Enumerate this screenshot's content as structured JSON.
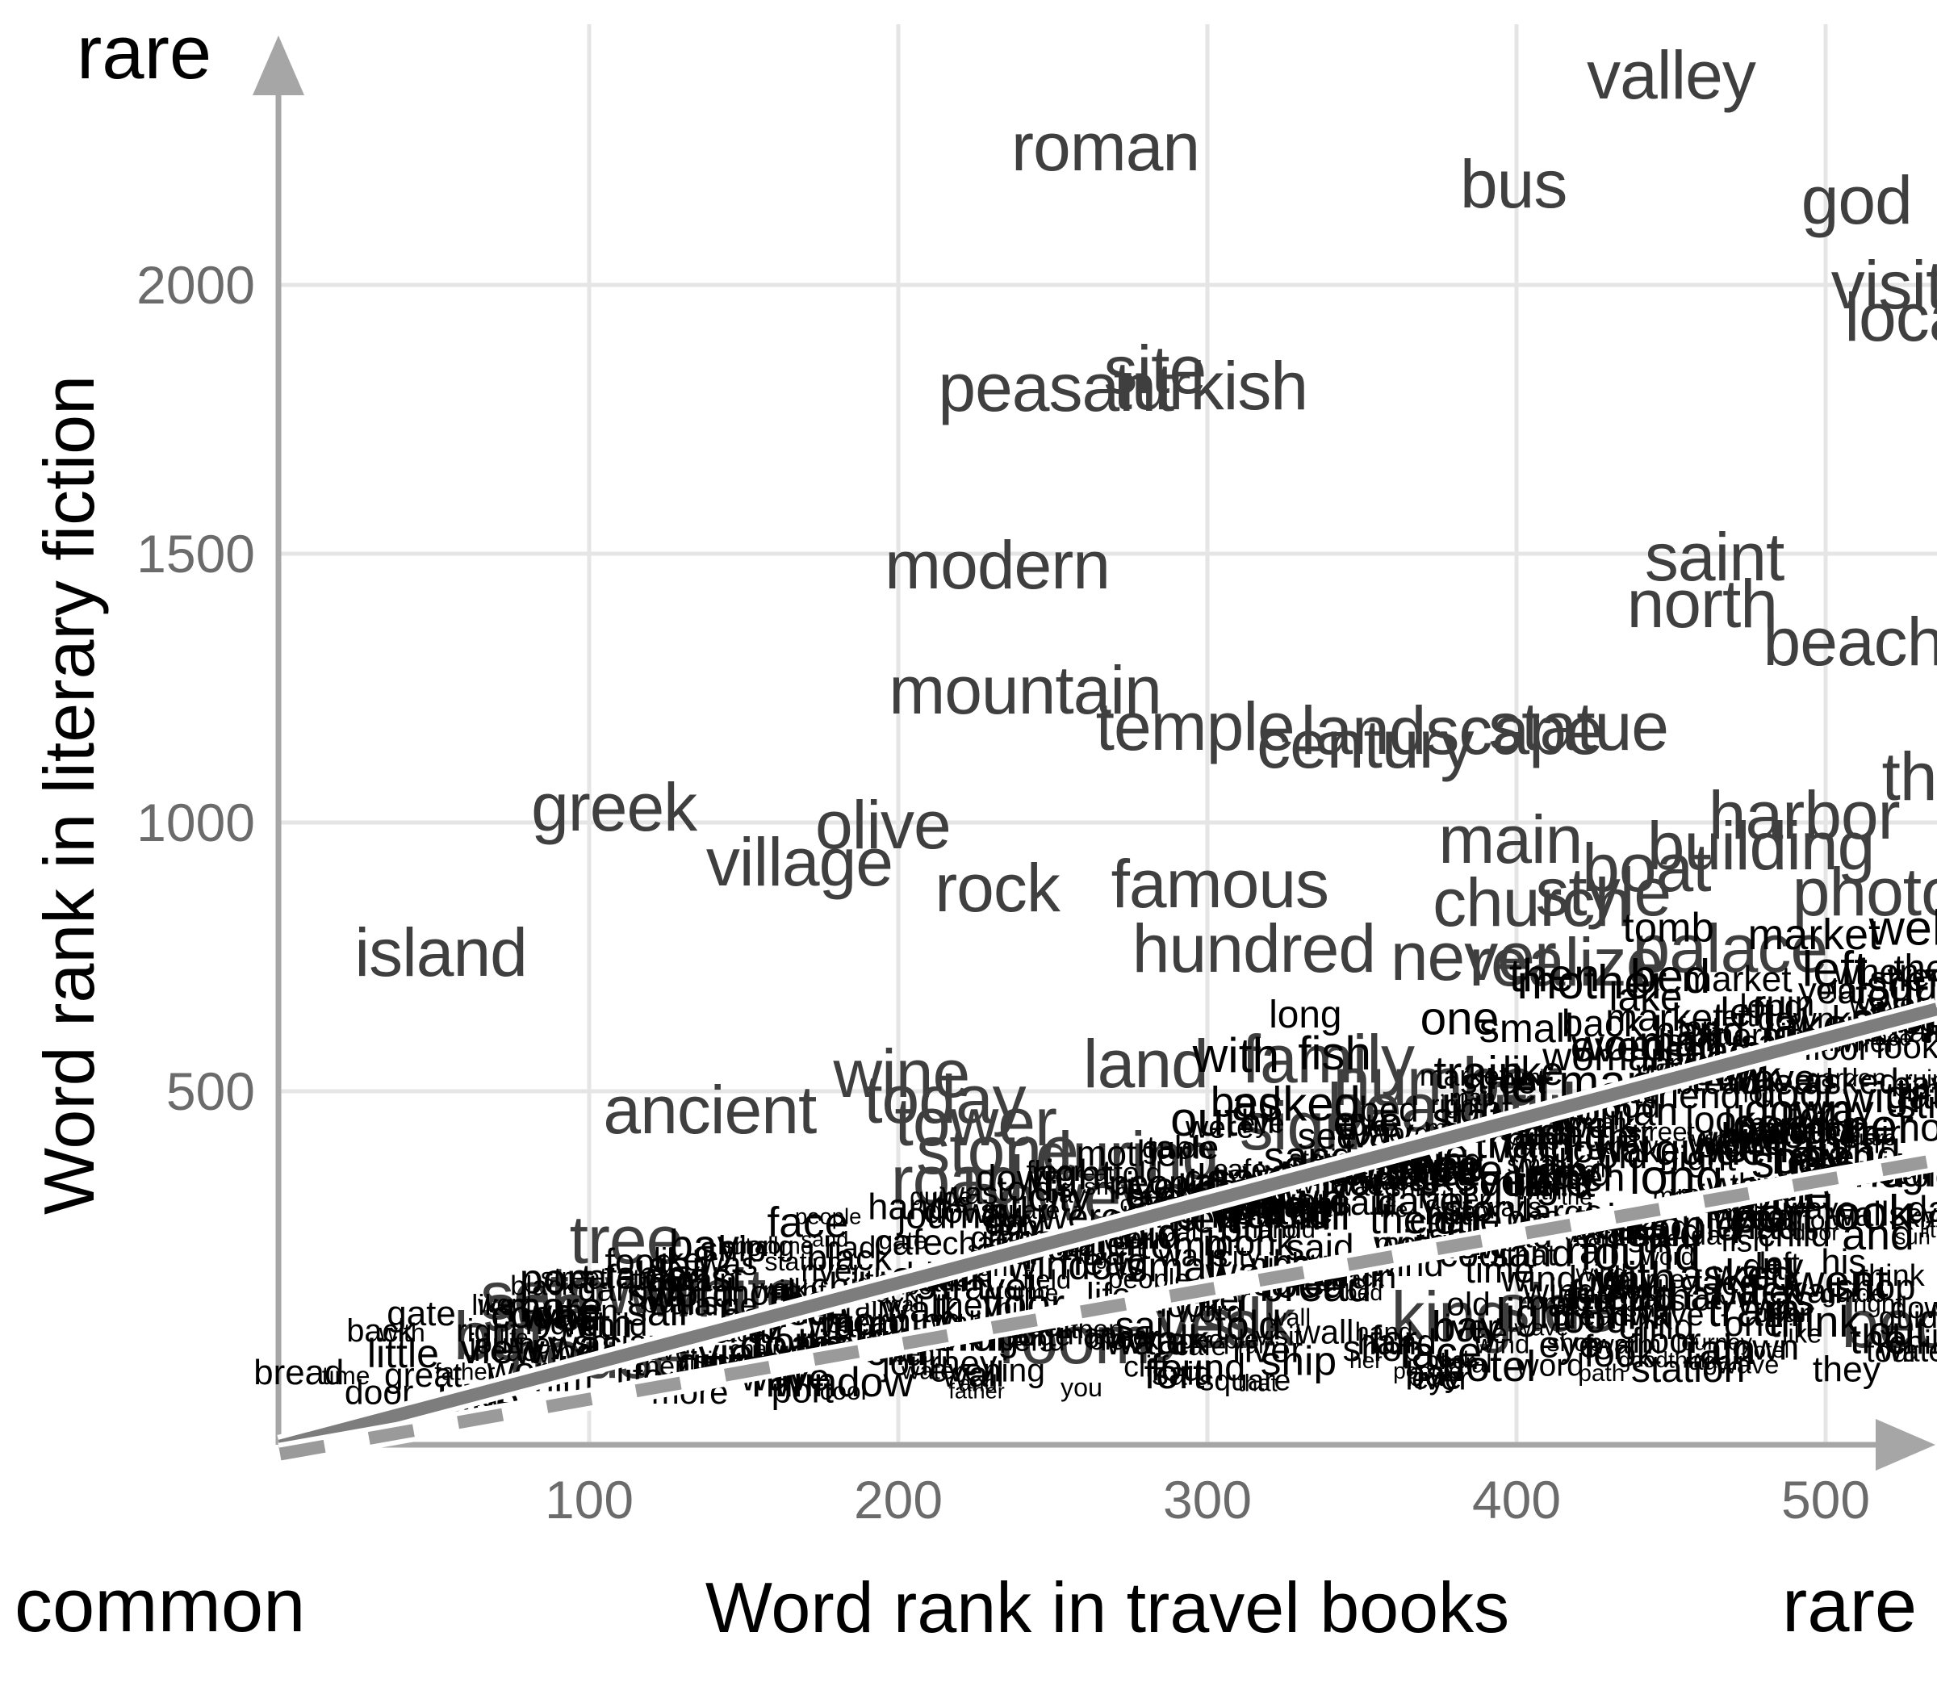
{
  "chart_data": {
    "type": "scatter",
    "title": "",
    "xlabel": "Word rank in travel books",
    "ylabel": "Word rank in literary fiction",
    "x_endpoint_labels": {
      "left": "common",
      "right": "rare"
    },
    "y_endpoint_labels": {
      "top": "rare"
    },
    "x_ticks": [
      100,
      200,
      300,
      400,
      500
    ],
    "y_ticks": [
      500,
      1000,
      1500,
      2000
    ],
    "x_range": [
      0,
      536
    ],
    "y_range": [
      0,
      2450
    ],
    "grid": true,
    "legend": "none",
    "colors": {
      "word_text": "#3f3f3f",
      "dense_text": "#000000",
      "gridline": "#e5e5e5",
      "axis": "#a6a6a6",
      "tick_text": "#6b6b6b",
      "trend_solid": "#7d7d7d",
      "trend_dashed": "#9a9a9a",
      "trend_casing": "#ffffff"
    },
    "points": [
      {
        "word": "roman",
        "travel_rank": 267,
        "fiction_rank": 2257
      },
      {
        "word": "valley",
        "travel_rank": 450,
        "fiction_rank": 2390
      },
      {
        "word": "bus",
        "travel_rank": 399,
        "fiction_rank": 2188
      },
      {
        "word": "god",
        "travel_rank": 510,
        "fiction_rank": 2158
      },
      {
        "word": "visit",
        "travel_rank": 520,
        "fiction_rank": 2000
      },
      {
        "word": "local",
        "travel_rank": 528,
        "fiction_rank": 1940
      },
      {
        "word": "peasant",
        "travel_rank": 251,
        "fiction_rank": 1809
      },
      {
        "word": "site",
        "travel_rank": 283,
        "fiction_rank": 1842
      },
      {
        "word": "turkish",
        "travel_rank": 301,
        "fiction_rank": 1812
      },
      {
        "word": "modern",
        "travel_rank": 232,
        "fiction_rank": 1479
      },
      {
        "word": "saint",
        "travel_rank": 464,
        "fiction_rank": 1494
      },
      {
        "word": "north",
        "travel_rank": 460,
        "fiction_rank": 1407
      },
      {
        "word": "beach",
        "travel_rank": 509,
        "fiction_rank": 1336
      },
      {
        "word": "mountain",
        "travel_rank": 241,
        "fiction_rank": 1246
      },
      {
        "word": "temple",
        "travel_rank": 296,
        "fiction_rank": 1179
      },
      {
        "word": "century",
        "travel_rank": 351,
        "fiction_rank": 1146
      },
      {
        "word": "landscape",
        "travel_rank": 379,
        "fiction_rank": 1171
      },
      {
        "word": "statue",
        "travel_rank": 420,
        "fiction_rank": 1179
      },
      {
        "word": "harbor",
        "travel_rank": 493,
        "fiction_rank": 1014
      },
      {
        "word": "the",
        "travel_rank": 533,
        "fiction_rank": 1086
      },
      {
        "word": "greek",
        "travel_rank": 108,
        "fiction_rank": 1029
      },
      {
        "word": "village",
        "travel_rank": 168,
        "fiction_rank": 926
      },
      {
        "word": "olive",
        "travel_rank": 195,
        "fiction_rank": 996
      },
      {
        "word": "rock",
        "travel_rank": 232,
        "fiction_rank": 878
      },
      {
        "word": "island",
        "travel_rank": 52,
        "fiction_rank": 758
      },
      {
        "word": "famous",
        "travel_rank": 304,
        "fiction_rank": 886
      },
      {
        "word": "main",
        "travel_rank": 398,
        "fiction_rank": 968
      },
      {
        "word": "building",
        "travel_rank": 479,
        "fiction_rank": 956
      },
      {
        "word": "style",
        "travel_rank": 428,
        "fiction_rank": 871
      },
      {
        "word": "church",
        "travel_rank": 405,
        "fiction_rank": 851
      },
      {
        "word": "photo",
        "travel_rank": 516,
        "fiction_rank": 871
      },
      {
        "word": "boat",
        "travel_rank": 442,
        "fiction_rank": 916
      },
      {
        "word": "hundred",
        "travel_rank": 315,
        "fiction_rank": 766
      },
      {
        "word": "never",
        "travel_rank": 386,
        "fiction_rank": 751
      },
      {
        "word": "realize",
        "travel_rank": 416,
        "fiction_rank": 740
      },
      {
        "word": "palace",
        "travel_rank": 469,
        "fiction_rank": 766
      },
      {
        "word": "wine",
        "travel_rank": 201,
        "fiction_rank": 533
      },
      {
        "word": "land",
        "travel_rank": 280,
        "fiction_rank": 551
      },
      {
        "word": "ancient",
        "travel_rank": 139,
        "fiction_rank": 466
      },
      {
        "word": "today",
        "travel_rank": 215,
        "fiction_rank": 485
      },
      {
        "word": "tower",
        "travel_rank": 225,
        "fiction_rank": 443
      },
      {
        "word": "stone",
        "travel_rank": 232,
        "fiction_rank": 390
      },
      {
        "word": "during",
        "travel_rank": 274,
        "fiction_rank": 380
      },
      {
        "word": "however",
        "travel_rank": 261,
        "fiction_rank": 303
      },
      {
        "word": "road",
        "travel_rank": 219,
        "fiction_rank": 335
      },
      {
        "word": "number",
        "travel_rank": 377,
        "fiction_rank": 518
      },
      {
        "word": "beautiful",
        "travel_rank": 379,
        "fiction_rank": 470
      },
      {
        "word": "family",
        "travel_rank": 339,
        "fiction_rank": 560
      },
      {
        "word": "sign",
        "travel_rank": 330,
        "fiction_rank": 435
      },
      {
        "word": "tree",
        "travel_rank": 112,
        "fiction_rank": 224
      },
      {
        "word": "sea",
        "travel_rank": 83,
        "fiction_rank": 98
      },
      {
        "word": "town",
        "travel_rank": 110,
        "fiction_rank": 131
      },
      {
        "word": "white",
        "travel_rank": 144,
        "fiction_rank": 125
      },
      {
        "word": "house",
        "travel_rank": 103,
        "fiction_rank": 10
      },
      {
        "word": "but",
        "travel_rank": 71,
        "fiction_rank": 45
      },
      {
        "word": "set",
        "travel_rank": 79,
        "fiction_rank": 120
      },
      {
        "word": "yes",
        "travel_rank": 300,
        "fiction_rank": 68
      },
      {
        "word": "silk",
        "travel_rank": 313,
        "fiction_rank": 71
      },
      {
        "word": "king",
        "travel_rank": 379,
        "fiction_rank": 83
      },
      {
        "word": "side",
        "travel_rank": 413,
        "fiction_rank": 98
      },
      {
        "word": "bed",
        "travel_rank": 523,
        "fiction_rank": 68
      },
      {
        "word": "room",
        "travel_rank": 257,
        "fiction_rank": 38
      }
    ],
    "trend_lines": [
      {
        "name": "fit-solid",
        "style": "solid",
        "x1": 0,
        "y1": -160,
        "x2": 536,
        "y2": 653
      },
      {
        "name": "fit-dashed",
        "style": "dashed",
        "x1": 0,
        "y1": -175,
        "x2": 536,
        "y2": 372
      }
    ],
    "dense_band_words": [
      "the",
      "and",
      "was",
      "her",
      "his",
      "she",
      "had",
      "with",
      "that",
      "for",
      "not",
      "him",
      "but",
      "all",
      "they",
      "one",
      "said",
      "were",
      "you",
      "out",
      "when",
      "then",
      "little",
      "down",
      "time",
      "man",
      "like",
      "day",
      "old",
      "good",
      "great",
      "eye",
      "hand",
      "face",
      "door",
      "night",
      "way",
      "back",
      "long",
      "more",
      "know",
      "come",
      "went",
      "see",
      "look",
      "think",
      "head",
      "well",
      "light",
      "place",
      "thing",
      "life",
      "still",
      "water",
      "again",
      "people",
      "told",
      "asked",
      "left",
      "found",
      "right",
      "street",
      "city",
      "walk",
      "small",
      "large",
      "black",
      "dark",
      "year",
      "word",
      "story",
      "friend",
      "father",
      "mother",
      "woman",
      "child",
      "morning",
      "evening",
      "sun",
      "wind",
      "rain",
      "garden",
      "hill",
      "river",
      "field",
      "wall",
      "window",
      "floor",
      "table",
      "chair",
      "bed",
      "food",
      "bread",
      "fish",
      "market",
      "shop",
      "hotel",
      "train",
      "station",
      "journey",
      "travel",
      "guide",
      "map",
      "coast",
      "port",
      "ship",
      "sail",
      "cafe",
      "square",
      "ruin",
      "path",
      "view",
      "tour",
      "lake",
      "bay",
      "cliff",
      "sand",
      "monk",
      "gate",
      "tomb",
      "fort",
      "wave",
      "blue",
      "warm",
      "cool",
      "walls",
      "visit"
    ]
  }
}
